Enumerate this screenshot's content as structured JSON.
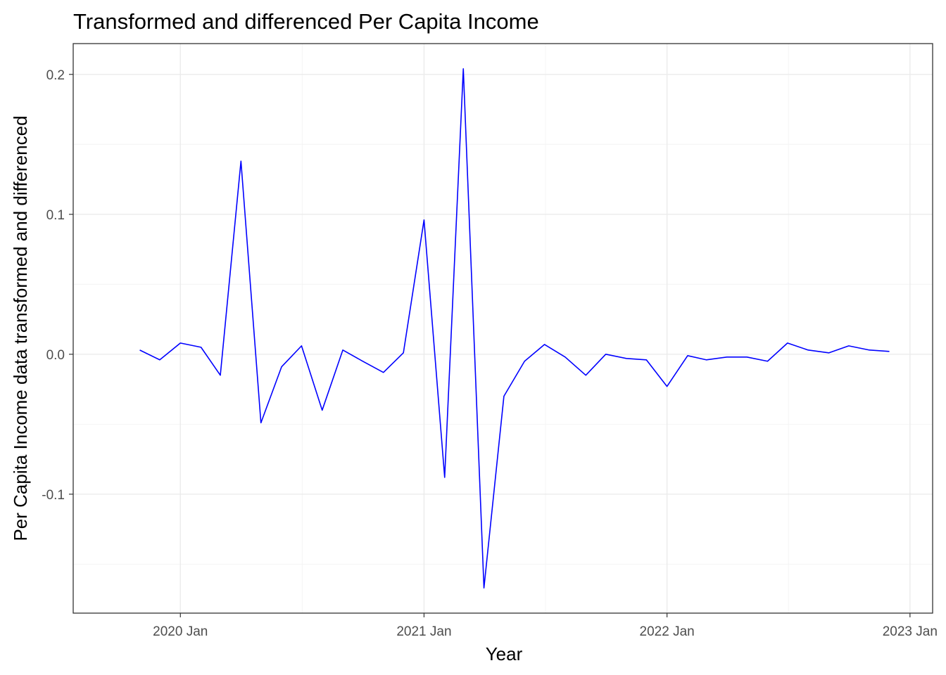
{
  "chart_data": {
    "type": "line",
    "title": "Transformed and differenced Per Capita Income",
    "xlabel": "Year",
    "ylabel": "Per Capita Income data transformed and differenced",
    "x_ticks": [
      "2020 Jan",
      "2021 Jan",
      "2022 Jan",
      "2023 Jan"
    ],
    "y_ticks": [
      "-0.1",
      "0.0",
      "0.1",
      "0.2"
    ],
    "xlim": [
      "2019-07-24",
      "2023-02-04"
    ],
    "ylim": [
      -0.185,
      0.222
    ],
    "grid": true,
    "series": [
      {
        "color": "#0000ff",
        "points": [
          {
            "x": "2019-11-01",
            "y": 0.003
          },
          {
            "x": "2019-12-01",
            "y": -0.004
          },
          {
            "x": "2020-01-01",
            "y": 0.008
          },
          {
            "x": "2020-02-01",
            "y": 0.005
          },
          {
            "x": "2020-03-01",
            "y": -0.015
          },
          {
            "x": "2020-04-01",
            "y": 0.138
          },
          {
            "x": "2020-05-01",
            "y": -0.049
          },
          {
            "x": "2020-06-01",
            "y": -0.009
          },
          {
            "x": "2020-07-01",
            "y": 0.006
          },
          {
            "x": "2020-08-01",
            "y": -0.04
          },
          {
            "x": "2020-09-01",
            "y": 0.003
          },
          {
            "x": "2020-10-01",
            "y": -0.005
          },
          {
            "x": "2020-11-01",
            "y": -0.013
          },
          {
            "x": "2020-12-01",
            "y": 0.001
          },
          {
            "x": "2021-01-01",
            "y": 0.096
          },
          {
            "x": "2021-02-01",
            "y": -0.088
          },
          {
            "x": "2021-03-01",
            "y": 0.204
          },
          {
            "x": "2021-04-01",
            "y": -0.167
          },
          {
            "x": "2021-05-01",
            "y": -0.03
          },
          {
            "x": "2021-06-01",
            "y": -0.005
          },
          {
            "x": "2021-07-01",
            "y": 0.007
          },
          {
            "x": "2021-08-01",
            "y": -0.002
          },
          {
            "x": "2021-09-01",
            "y": -0.015
          },
          {
            "x": "2021-10-01",
            "y": 0.0
          },
          {
            "x": "2021-11-01",
            "y": -0.003
          },
          {
            "x": "2021-12-01",
            "y": -0.004
          },
          {
            "x": "2022-01-01",
            "y": -0.023
          },
          {
            "x": "2022-02-01",
            "y": -0.001
          },
          {
            "x": "2022-03-01",
            "y": -0.004
          },
          {
            "x": "2022-04-01",
            "y": -0.002
          },
          {
            "x": "2022-05-01",
            "y": -0.002
          },
          {
            "x": "2022-06-01",
            "y": -0.005
          },
          {
            "x": "2022-07-01",
            "y": 0.008
          },
          {
            "x": "2022-08-01",
            "y": 0.003
          },
          {
            "x": "2022-09-01",
            "y": 0.001
          },
          {
            "x": "2022-10-01",
            "y": 0.006
          },
          {
            "x": "2022-11-01",
            "y": 0.003
          },
          {
            "x": "2022-12-01",
            "y": 0.002
          }
        ]
      }
    ]
  }
}
